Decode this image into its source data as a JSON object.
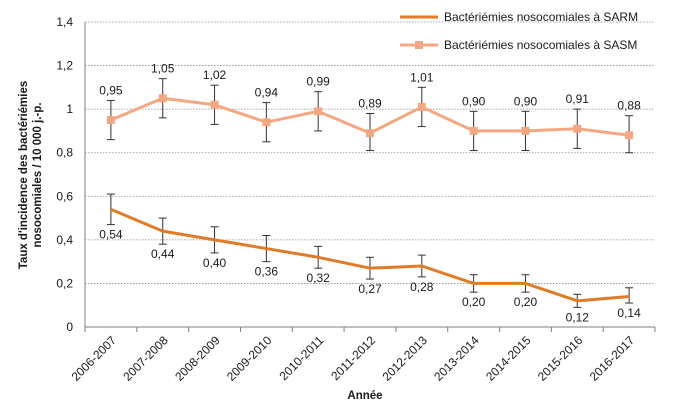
{
  "chart_data": {
    "type": "line",
    "xlabel": "Année",
    "ylabel": "Taux d'incidence des bactériémies nosocomiales / 10 000 j.-p.",
    "ylim": [
      0,
      1.4
    ],
    "yticks": [
      "0",
      "0,2",
      "0,4",
      "0,6",
      "0,8",
      "1",
      "1,2",
      "1,4"
    ],
    "grid": "horizontal dotted",
    "legend_position": "top-right",
    "categories": [
      "2006-2007",
      "2007-2008",
      "2008-2009",
      "2009-2010",
      "2010-2011",
      "2011-2012",
      "2012-2013",
      "2013-2014",
      "2014-2015",
      "2015-2016",
      "2016-2017"
    ],
    "series": [
      {
        "name": "Bactériémies nosocomiales à SARM",
        "color": "#E07B28",
        "marker": "none",
        "values": [
          0.54,
          0.44,
          0.4,
          0.36,
          0.32,
          0.27,
          0.28,
          0.2,
          0.2,
          0.12,
          0.14
        ],
        "labels": [
          "0,54",
          "0,44",
          "0,40",
          "0,36",
          "0,32",
          "0,27",
          "0,28",
          "0,20",
          "0,20",
          "0,12",
          "0,14"
        ],
        "err_low": [
          0.47,
          0.38,
          0.34,
          0.3,
          0.27,
          0.22,
          0.23,
          0.16,
          0.16,
          0.09,
          0.11
        ],
        "err_high": [
          0.61,
          0.5,
          0.46,
          0.42,
          0.37,
          0.32,
          0.33,
          0.24,
          0.24,
          0.15,
          0.18
        ]
      },
      {
        "name": "Bactériémies nosocomiales à SASM",
        "color": "#F4A783",
        "marker": "square",
        "values": [
          0.95,
          1.05,
          1.02,
          0.94,
          0.99,
          0.89,
          1.01,
          0.9,
          0.9,
          0.91,
          0.88
        ],
        "labels": [
          "0,95",
          "1,05",
          "1,02",
          "0,94",
          "0,99",
          "0,89",
          "1,01",
          "0,90",
          "0,90",
          "0,91",
          "0,88"
        ],
        "err_low": [
          0.86,
          0.96,
          0.93,
          0.85,
          0.9,
          0.81,
          0.92,
          0.81,
          0.81,
          0.82,
          0.8
        ],
        "err_high": [
          1.04,
          1.14,
          1.11,
          1.03,
          1.08,
          0.98,
          1.1,
          0.99,
          0.99,
          1.0,
          0.97
        ]
      }
    ]
  }
}
